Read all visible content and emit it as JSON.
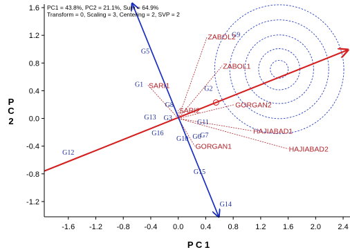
{
  "chart_data": {
    "type": "scatter",
    "info_lines": [
      "PC1 = 43.8%, PC2 = 21.1%, Sum = 64.9%",
      "Transform = 0, Scaling = 3, Centering = 2, SVP = 2"
    ],
    "xlabel": "P C 1",
    "ylabel": "P C 2",
    "xlim": [
      -1.95,
      2.5
    ],
    "ylim": [
      -1.42,
      1.65
    ],
    "xticks": [
      "-1.6",
      "-1.2",
      "-0.8",
      "-0.4",
      "0.0",
      "0.4",
      "0.8",
      "1.2",
      "1.6",
      "2.0",
      "2.4"
    ],
    "yticks": [
      "1.6",
      "1.2",
      "0.8",
      "0.4",
      "0.0",
      "-0.4",
      "-0.8",
      "-1.2"
    ],
    "colors": {
      "genotype": "#1f2f9a",
      "environment": "#b0232a",
      "aec_axis": "#d42020",
      "aec_ordinate": "#1a2fc0",
      "circles": "#2a3fbf"
    },
    "environments": [
      {
        "name": "ZABOL2",
        "x": 0.42,
        "y": 1.18
      },
      {
        "name": "ZABOL1",
        "x": 0.64,
        "y": 0.76
      },
      {
        "name": "GORGAN2",
        "x": 0.82,
        "y": 0.2
      },
      {
        "name": "SARI1",
        "x": -0.44,
        "y": 0.48
      },
      {
        "name": "SARI2",
        "x": 0.0,
        "y": 0.12
      },
      {
        "name": "HAJIABAD1",
        "x": 1.08,
        "y": -0.18
      },
      {
        "name": "HAJIABAD2",
        "x": 1.6,
        "y": -0.44
      },
      {
        "name": "GORGAN1",
        "x": 0.24,
        "y": -0.4
      }
    ],
    "genotypes": [
      {
        "name": "G1",
        "x": -0.57,
        "y": 0.48
      },
      {
        "name": "G2",
        "x": 0.44,
        "y": 0.42
      },
      {
        "name": "G3",
        "x": -0.15,
        "y": 0.0
      },
      {
        "name": "G5",
        "x": -0.48,
        "y": 0.96
      },
      {
        "name": "G6",
        "x": 0.27,
        "y": -0.27
      },
      {
        "name": "G7",
        "x": 0.38,
        "y": -0.25
      },
      {
        "name": "G8",
        "x": -0.13,
        "y": 0.19
      },
      {
        "name": "G9",
        "x": 0.84,
        "y": 1.2
      },
      {
        "name": "G10",
        "x": 0.06,
        "y": -0.3
      },
      {
        "name": "G11",
        "x": 0.36,
        "y": -0.06
      },
      {
        "name": "G12",
        "x": -1.6,
        "y": -0.5
      },
      {
        "name": "G13",
        "x": -0.41,
        "y": 0.01
      },
      {
        "name": "G14",
        "x": 0.69,
        "y": -1.25
      },
      {
        "name": "G15",
        "x": 0.31,
        "y": -0.78
      },
      {
        "name": "G16",
        "x": -0.3,
        "y": -0.22
      }
    ],
    "aec_abscissa": {
      "from": [
        -1.95,
        -0.76
      ],
      "to": [
        2.47,
        0.99
      ]
    },
    "aec_ordinate": {
      "from": [
        -0.67,
        1.66
      ],
      "to": [
        0.59,
        -1.42
      ]
    },
    "ideal_center": {
      "x": 1.47,
      "y": 0.71
    },
    "concentric_radii": [
      0.13,
      0.3,
      0.5,
      0.72,
      0.94
    ],
    "average_env_marker": {
      "x": 0.55,
      "y": 0.23
    }
  }
}
